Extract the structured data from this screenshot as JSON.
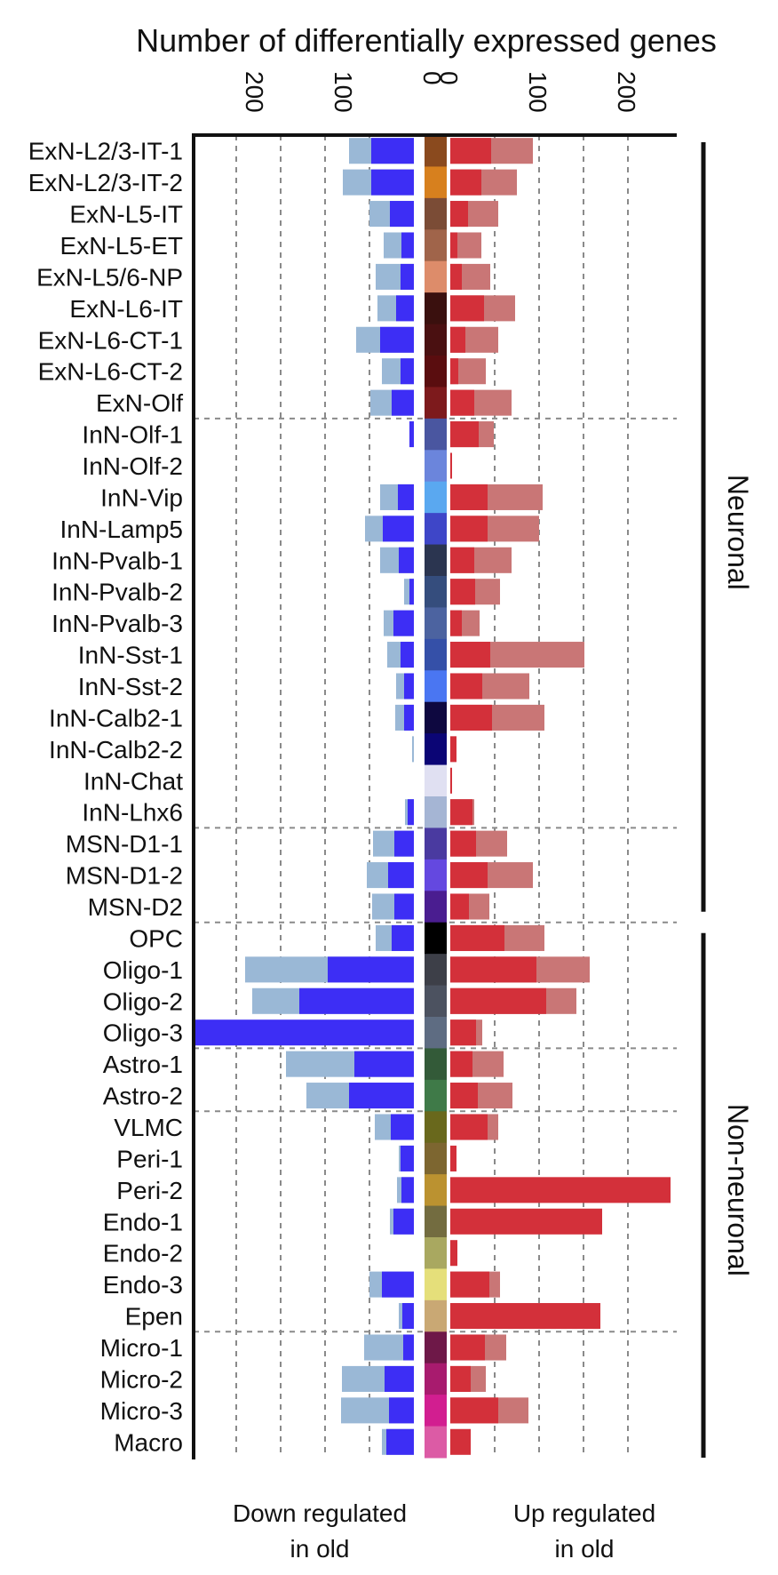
{
  "chart_data": {
    "type": "bar",
    "title": "Number of differentially expressed genes",
    "left_axis_label": "Down regulated in old",
    "right_axis_label": "Up regulated in old",
    "down_ticks": [
      "200",
      "100",
      "0"
    ],
    "up_ticks": [
      "0",
      "100",
      "200"
    ],
    "xlim_down": [
      0,
      250
    ],
    "xlim_up": [
      0,
      250
    ],
    "grid": true,
    "series": [
      {
        "name": "Down regulated (dark)",
        "color": "#3d2ef5"
      },
      {
        "name": "Down regulated (light)",
        "color": "#9ab8d6"
      },
      {
        "name": "Up regulated (dark)",
        "color": "#d3303a"
      },
      {
        "name": "Up regulated (light)",
        "color": "#c97676"
      }
    ],
    "groups": [
      {
        "name": "Neuronal"
      },
      {
        "name": "Non-neuronal"
      }
    ],
    "separators_after": [
      "ExN-Olf",
      "InN-Lhx6",
      "MSN-D2",
      "Oligo-3",
      "Astro-2",
      "Epen"
    ],
    "categories": [
      {
        "label": "ExN-L2/3-IT-1",
        "swatch": "#8a4a1e",
        "down_dark": 48,
        "down_light": 73,
        "up_dark": 46,
        "up_light": 93
      },
      {
        "label": "ExN-L2/3-IT-2",
        "swatch": "#d7801e",
        "down_dark": 48,
        "down_light": 80,
        "up_dark": 35,
        "up_light": 75
      },
      {
        "label": "ExN-L5-IT",
        "swatch": "#7b4c36",
        "down_dark": 27,
        "down_light": 50,
        "up_dark": 20,
        "up_light": 54
      },
      {
        "label": "ExN-L5-ET",
        "swatch": "#a0644a",
        "down_dark": 14,
        "down_light": 34,
        "up_dark": 8,
        "up_light": 35
      },
      {
        "label": "ExN-L5/6-NP",
        "swatch": "#dd8c6a",
        "down_dark": 15,
        "down_light": 43,
        "up_dark": 13,
        "up_light": 45
      },
      {
        "label": "ExN-L6-IT",
        "swatch": "#3a100e",
        "down_dark": 20,
        "down_light": 41,
        "up_dark": 38,
        "up_light": 73
      },
      {
        "label": "ExN-L6-CT-1",
        "swatch": "#4a1011",
        "down_dark": 38,
        "down_light": 65,
        "up_dark": 17,
        "up_light": 54
      },
      {
        "label": "ExN-L6-CT-2",
        "swatch": "#5a0d0f",
        "down_dark": 15,
        "down_light": 36,
        "up_dark": 9,
        "up_light": 40
      },
      {
        "label": "ExN-Olf",
        "swatch": "#7d1a1c",
        "down_dark": 25,
        "down_light": 49,
        "up_dark": 27,
        "up_light": 69
      },
      {
        "label": "InN-Olf-1",
        "swatch": "#4a56a0",
        "down_dark": 5,
        "down_light": 0,
        "up_dark": 32,
        "up_light": 49
      },
      {
        "label": "InN-Olf-2",
        "swatch": "#6b85dc",
        "down_dark": 0,
        "down_light": 0,
        "up_dark": 2,
        "up_light": 0
      },
      {
        "label": "InN-Vip",
        "swatch": "#5aa8f0",
        "down_dark": 18,
        "down_light": 38,
        "up_dark": 42,
        "up_light": 104
      },
      {
        "label": "InN-Lamp5",
        "swatch": "#3e46c8",
        "down_dark": 35,
        "down_light": 55,
        "up_dark": 42,
        "up_light": 100
      },
      {
        "label": "InN-Pvalb-1",
        "swatch": "#2b3550",
        "down_dark": 17,
        "down_light": 38,
        "up_dark": 27,
        "up_light": 69
      },
      {
        "label": "InN-Pvalb-2",
        "swatch": "#354d7d",
        "down_dark": 5,
        "down_light": 11,
        "up_dark": 28,
        "up_light": 56
      },
      {
        "label": "InN-Pvalb-3",
        "swatch": "#4c63a0",
        "down_dark": 23,
        "down_light": 34,
        "up_dark": 13,
        "up_light": 33
      },
      {
        "label": "InN-Sst-1",
        "swatch": "#3550a8",
        "down_dark": 15,
        "down_light": 30,
        "up_dark": 45,
        "up_light": 151
      },
      {
        "label": "InN-Sst-2",
        "swatch": "#4a76f2",
        "down_dark": 11,
        "down_light": 20,
        "up_dark": 36,
        "up_light": 89
      },
      {
        "label": "InN-Calb2-1",
        "swatch": "#0e0840",
        "down_dark": 11,
        "down_light": 21,
        "up_dark": 47,
        "up_light": 106
      },
      {
        "label": "InN-Calb2-2",
        "swatch": "#0b0575",
        "down_dark": 0,
        "down_light": 2,
        "up_dark": 7,
        "up_light": 0
      },
      {
        "label": "InN-Chat",
        "swatch": "#e0e0f2",
        "down_dark": 0,
        "down_light": 0,
        "up_dark": 2,
        "up_light": 0
      },
      {
        "label": "InN-Lhx6",
        "swatch": "#a5b5d4",
        "down_dark": 7,
        "down_light": 10,
        "up_dark": 25,
        "up_light": 27
      },
      {
        "label": "MSN-D1-1",
        "swatch": "#4a3aa0",
        "down_dark": 22,
        "down_light": 46,
        "up_dark": 29,
        "up_light": 64
      },
      {
        "label": "MSN-D1-2",
        "swatch": "#6448e0",
        "down_dark": 29,
        "down_light": 53,
        "up_dark": 42,
        "up_light": 93
      },
      {
        "label": "MSN-D2",
        "swatch": "#4a1d90",
        "down_dark": 22,
        "down_light": 47,
        "up_dark": 21,
        "up_light": 44
      },
      {
        "label": "OPC",
        "swatch": "#000000",
        "down_dark": 25,
        "down_light": 43,
        "up_dark": 61,
        "up_light": 106
      },
      {
        "label": "Oligo-1",
        "swatch": "#3d3f48",
        "down_dark": 97,
        "down_light": 190,
        "up_dark": 97,
        "up_light": 157
      },
      {
        "label": "Oligo-2",
        "swatch": "#4c5260",
        "down_dark": 129,
        "down_light": 182,
        "up_dark": 108,
        "up_light": 142
      },
      {
        "label": "Oligo-3",
        "swatch": "#5e6c82",
        "down_dark": 247,
        "down_light": 0,
        "up_dark": 29,
        "up_light": 36
      },
      {
        "label": "Astro-1",
        "swatch": "#335a38",
        "down_dark": 67,
        "down_light": 144,
        "up_dark": 25,
        "up_light": 60
      },
      {
        "label": "Astro-2",
        "swatch": "#3f7a48",
        "down_dark": 73,
        "down_light": 121,
        "up_dark": 31,
        "up_light": 70
      },
      {
        "label": "VLMC",
        "swatch": "#69681c",
        "down_dark": 26,
        "down_light": 44,
        "up_dark": 42,
        "up_light": 54
      },
      {
        "label": "Peri-1",
        "swatch": "#7d6630",
        "down_dark": 15,
        "down_light": 17,
        "up_dark": 7,
        "up_light": 0
      },
      {
        "label": "Peri-2",
        "swatch": "#bb9230",
        "down_dark": 14,
        "down_light": 19,
        "up_dark": 248,
        "up_light": 0
      },
      {
        "label": "Endo-1",
        "swatch": "#736c40",
        "down_dark": 23,
        "down_light": 27,
        "up_dark": 171,
        "up_light": 0
      },
      {
        "label": "Endo-2",
        "swatch": "#a9a860",
        "down_dark": 0,
        "down_light": 0,
        "up_dark": 8,
        "up_light": 0
      },
      {
        "label": "Endo-3",
        "swatch": "#e5df7a",
        "down_dark": 36,
        "down_light": 50,
        "up_dark": 44,
        "up_light": 56
      },
      {
        "label": "Epen",
        "swatch": "#c9a874",
        "down_dark": 13,
        "down_light": 17,
        "up_dark": 169,
        "up_light": 0
      },
      {
        "label": "Micro-1",
        "swatch": "#6e1848",
        "down_dark": 12,
        "down_light": 56,
        "up_dark": 39,
        "up_light": 63
      },
      {
        "label": "Micro-2",
        "swatch": "#a81b6e",
        "down_dark": 33,
        "down_light": 81,
        "up_dark": 23,
        "up_light": 40
      },
      {
        "label": "Micro-3",
        "swatch": "#d21e90",
        "down_dark": 28,
        "down_light": 82,
        "up_dark": 54,
        "up_light": 88
      },
      {
        "label": "Macro",
        "swatch": "#dc5ba5",
        "down_dark": 31,
        "down_light": 36,
        "up_dark": 23,
        "up_light": 0
      }
    ]
  }
}
